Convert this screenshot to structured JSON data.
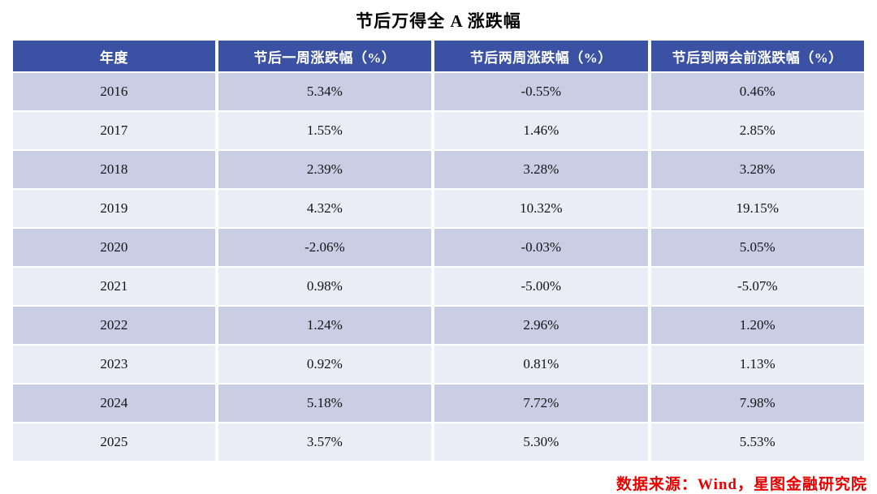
{
  "title": "节后万得全 A 涨跌幅",
  "source_note": "数据来源：Wind，星图金融研究院",
  "colors": {
    "header_bg": "#3B52A4",
    "row_dark": "#C9CEE4",
    "row_light": "#EAECF6",
    "highlight_red": "#CE0F2D",
    "highlight_blue": "#27439A",
    "source_text": "#E60000"
  },
  "chart_data": {
    "type": "table",
    "title": "节后万得全 A 涨跌幅",
    "columns": [
      "年度",
      "节后一周涨跌幅（%）",
      "节后两周涨跌幅（%）",
      "节后到两会前涨跌幅（%）"
    ],
    "rows": [
      {
        "year": "2016",
        "values": [
          {
            "text": "5.34%",
            "value": 5.34,
            "highlight": "red"
          },
          {
            "text": "-0.55%",
            "value": -0.55,
            "highlight": "blue"
          },
          {
            "text": "0.46%",
            "value": 0.46,
            "highlight": "none"
          }
        ]
      },
      {
        "year": "2017",
        "values": [
          {
            "text": "1.55%",
            "value": 1.55,
            "highlight": "none"
          },
          {
            "text": "1.46%",
            "value": 1.46,
            "highlight": "none"
          },
          {
            "text": "2.85%",
            "value": 2.85,
            "highlight": "none"
          }
        ]
      },
      {
        "year": "2018",
        "values": [
          {
            "text": "2.39%",
            "value": 2.39,
            "highlight": "none"
          },
          {
            "text": "3.28%",
            "value": 3.28,
            "highlight": "none"
          },
          {
            "text": "3.28%",
            "value": 3.28,
            "highlight": "none"
          }
        ]
      },
      {
        "year": "2019",
        "values": [
          {
            "text": "4.32%",
            "value": 4.32,
            "highlight": "none"
          },
          {
            "text": "10.32%",
            "value": 10.32,
            "highlight": "none"
          },
          {
            "text": "19.15%",
            "value": 19.15,
            "highlight": "red"
          }
        ]
      },
      {
        "year": "2020",
        "values": [
          {
            "text": "-2.06%",
            "value": -2.06,
            "highlight": "blue"
          },
          {
            "text": "-0.03%",
            "value": -0.03,
            "highlight": "blue"
          },
          {
            "text": "5.05%",
            "value": 5.05,
            "highlight": "red"
          }
        ]
      },
      {
        "year": "2021",
        "values": [
          {
            "text": "0.98%",
            "value": 0.98,
            "highlight": "none"
          },
          {
            "text": "-5.00%",
            "value": -5.0,
            "highlight": "blue"
          },
          {
            "text": "-5.07%",
            "value": -5.07,
            "highlight": "blue"
          }
        ]
      },
      {
        "year": "2022",
        "values": [
          {
            "text": "1.24%",
            "value": 1.24,
            "highlight": "none"
          },
          {
            "text": "2.96%",
            "value": 2.96,
            "highlight": "none"
          },
          {
            "text": "1.20%",
            "value": 1.2,
            "highlight": "none"
          }
        ]
      },
      {
        "year": "2023",
        "values": [
          {
            "text": "0.92%",
            "value": 0.92,
            "highlight": "none"
          },
          {
            "text": "0.81%",
            "value": 0.81,
            "highlight": "none"
          },
          {
            "text": "1.13%",
            "value": 1.13,
            "highlight": "none"
          }
        ]
      },
      {
        "year": "2024",
        "values": [
          {
            "text": "5.18%",
            "value": 5.18,
            "highlight": "red"
          },
          {
            "text": "7.72%",
            "value": 7.72,
            "highlight": "none"
          },
          {
            "text": "7.98%",
            "value": 7.98,
            "highlight": "red"
          }
        ]
      },
      {
        "year": "2025",
        "values": [
          {
            "text": "3.57%",
            "value": 3.57,
            "highlight": "none"
          },
          {
            "text": "5.30%",
            "value": 5.3,
            "highlight": "none"
          },
          {
            "text": "5.53%",
            "value": 5.53,
            "highlight": "red"
          }
        ]
      }
    ]
  }
}
